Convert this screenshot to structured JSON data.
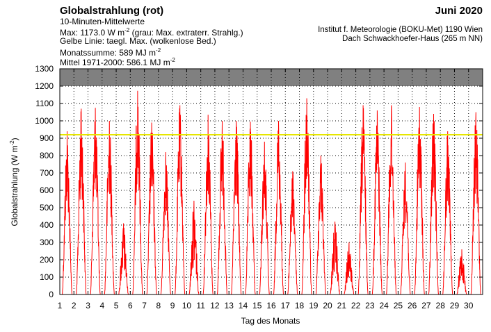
{
  "header": {
    "title": "Globalstrahlung (rot)",
    "subtitle": "10-Minuten-Mittelwerte",
    "max_prefix": "Max: 1173.0 W m",
    "max_exp": "-2",
    "max_suffix": "  (grau: Max. extraterr. Strahlg.)",
    "yellow_line": "Gelbe Linie: taegl. Max. (wolkenlose Bed.)",
    "month_sum_prefix": "Monatssumme:  589 MJ m",
    "month_sum_exp": "-2",
    "mean_prefix": "Mittel 1971-2000:  586.1 MJ m",
    "mean_exp": "-2",
    "month": "Juni 2020",
    "institute": "Institut f. Meteorologie (BOKU-Met) 1190 Wien",
    "location": "Dach Schwackhoefer-Haus (265 m NN)"
  },
  "colors": {
    "series": "#ff0000",
    "clear_sky_line": "#e6e600",
    "extraterrestrial_band": "#808080",
    "grid": "#000000"
  },
  "chart_data": {
    "type": "line",
    "xlabel": "Tag des Monats",
    "ylabel_prefix": "Globalstrahlung (W m",
    "ylabel_exp": "-2",
    "ylabel_suffix": ")",
    "xlim": [
      1,
      31
    ],
    "ylim": [
      0,
      1300
    ],
    "x_ticks": [
      1,
      2,
      3,
      4,
      5,
      6,
      7,
      8,
      9,
      10,
      11,
      12,
      13,
      14,
      15,
      16,
      17,
      18,
      19,
      20,
      21,
      22,
      23,
      24,
      25,
      26,
      27,
      28,
      29,
      30
    ],
    "y_ticks": [
      0,
      100,
      200,
      300,
      400,
      500,
      600,
      700,
      800,
      900,
      1000,
      1100,
      1200,
      1300
    ],
    "grid": true,
    "extraterrestrial_max_band": [
      1200,
      1300
    ],
    "clear_sky_daily_max": 920,
    "daily_peak_values": [
      940,
      1070,
      1075,
      1000,
      410,
      1173,
      990,
      820,
      1090,
      540,
      1035,
      1000,
      1000,
      995,
      880,
      1000,
      710,
      1130,
      800,
      420,
      300,
      1090,
      1060,
      1090,
      760,
      1080,
      1040,
      940,
      260,
      1050
    ],
    "series": [
      {
        "name": "Globalstrahlung",
        "values": [
          940,
          1070,
          1075,
          1000,
          410,
          1173,
          990,
          820,
          1090,
          540,
          1035,
          1000,
          1000,
          995,
          880,
          1000,
          710,
          1130,
          800,
          420,
          300,
          1090,
          1060,
          1090,
          760,
          1080,
          1040,
          940,
          260,
          1050
        ]
      }
    ]
  }
}
